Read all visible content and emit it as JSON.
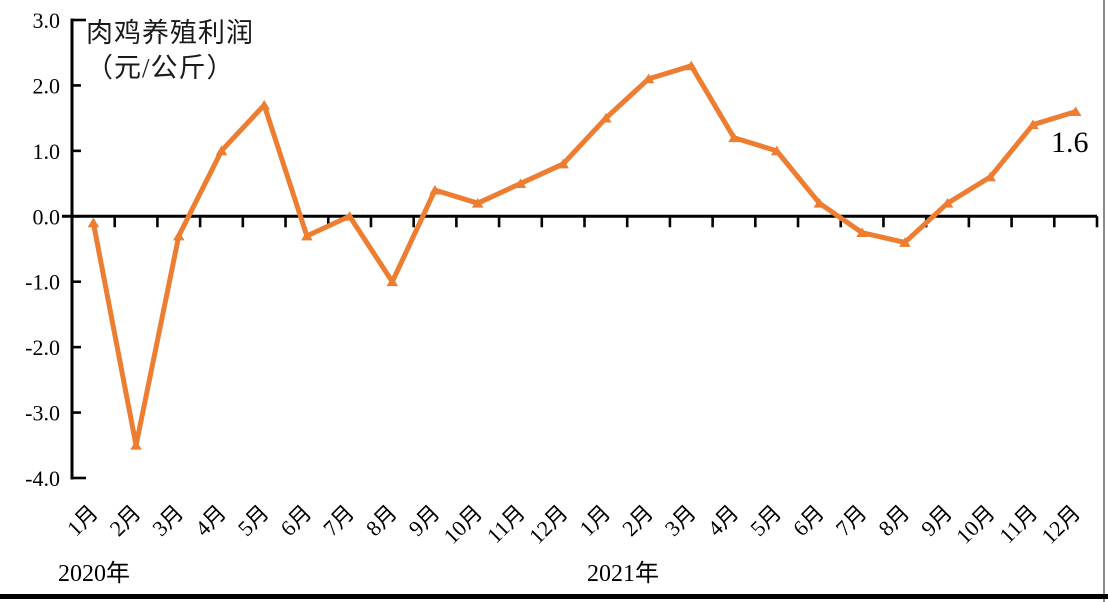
{
  "figure": {
    "colors": {
      "line": "#ED7D31",
      "axis": "#000000",
      "text": "#000000",
      "title_text": "#1a1a1a",
      "right_border": "#8c8c8c",
      "bottom_border": "#000000"
    }
  },
  "chart_data": {
    "type": "line",
    "title": "肉鸡养殖利润（元/公斤）",
    "title_lines": [
      "肉鸡养殖利润",
      "（元/公斤）"
    ],
    "ylabel": "元/公斤",
    "xlabel": "",
    "grid": false,
    "legend": "none",
    "ylim": [
      -4.0,
      3.0
    ],
    "yticks": [
      {
        "value": 3.0,
        "label": "3.0"
      },
      {
        "value": 2.0,
        "label": "2.0"
      },
      {
        "value": 1.0,
        "label": "1.0"
      },
      {
        "value": 0.0,
        "label": "0.0"
      },
      {
        "value": -1.0,
        "label": "-1.0"
      },
      {
        "value": -2.0,
        "label": "-2.0"
      },
      {
        "value": -3.0,
        "label": "-3.0"
      },
      {
        "value": -4.0,
        "label": "-4.0"
      }
    ],
    "categories": [
      "1月",
      "2月",
      "3月",
      "4月",
      "5月",
      "6月",
      "7月",
      "8月",
      "9月",
      "10月",
      "11月",
      "12月",
      "1月",
      "2月",
      "3月",
      "4月",
      "5月",
      "6月",
      "7月",
      "8月",
      "9月",
      "10月",
      "11月",
      "12月"
    ],
    "category_groups": [
      {
        "label": "2020年",
        "span": 12
      },
      {
        "label": "2021年",
        "span": 12
      }
    ],
    "series": [
      {
        "name": "肉鸡养殖利润",
        "marker": "triangle",
        "color": "#ED7D31",
        "values": [
          -0.1,
          -3.5,
          -0.3,
          1.0,
          1.7,
          -0.3,
          0.0,
          -1.0,
          0.4,
          0.2,
          0.5,
          0.8,
          1.5,
          2.1,
          2.3,
          1.2,
          1.0,
          0.2,
          -0.25,
          -0.4,
          0.2,
          0.6,
          1.4,
          1.6
        ]
      }
    ],
    "annotations": [
      {
        "text": "1.6",
        "category_index": 23,
        "value": 1.6
      }
    ]
  }
}
